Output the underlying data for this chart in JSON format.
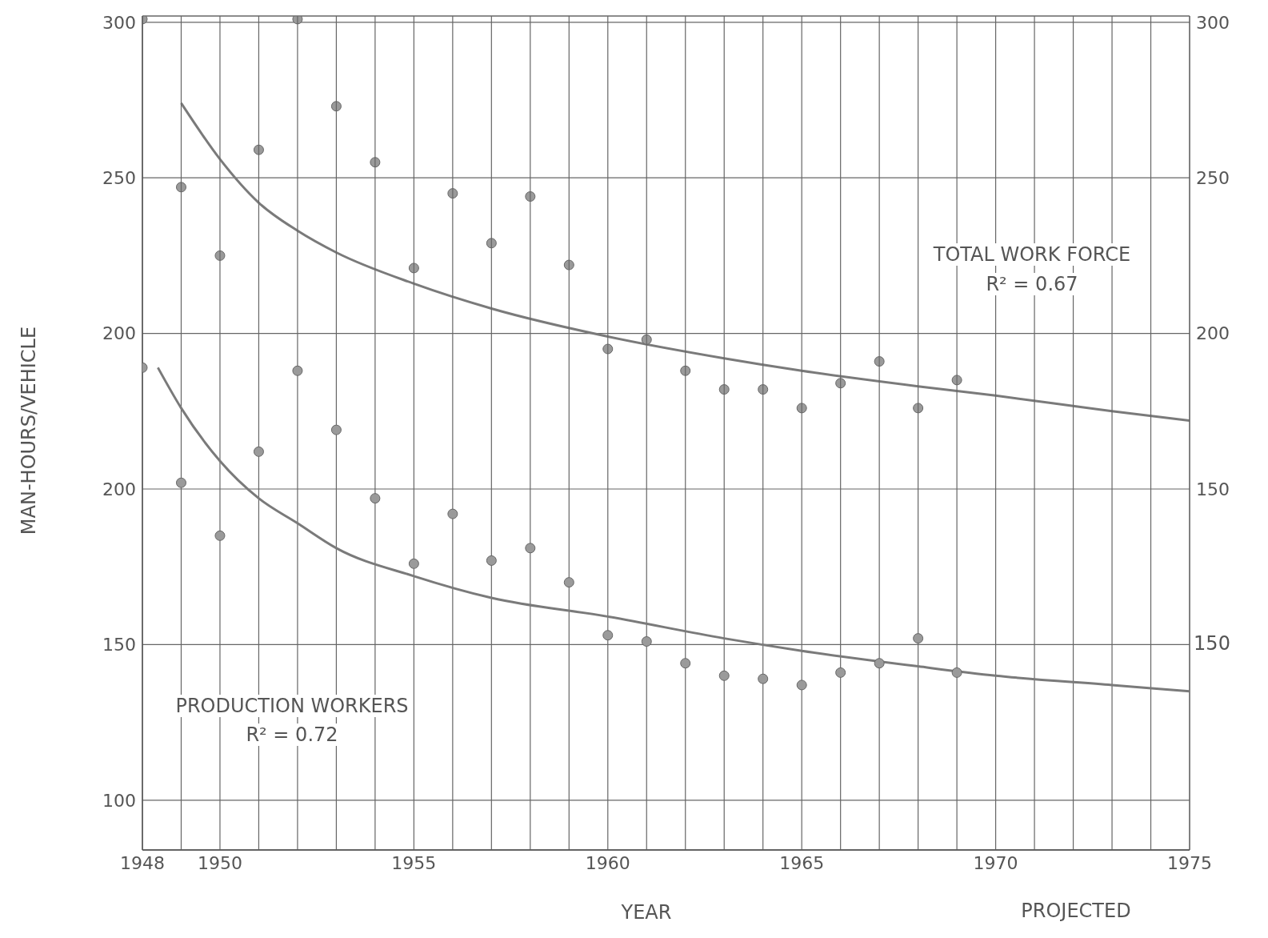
{
  "chart_data": [
    {
      "type": "scatter",
      "xlim": [
        1948,
        1975
      ],
      "ylim": [
        34,
        302
      ],
      "yticks": [
        300,
        250,
        200
      ],
      "y2lim": [
        34,
        302
      ],
      "y2ticks": [
        300,
        250,
        200,
        150
      ],
      "tick_labels": "y",
      "grid": "y",
      "line_style": "solid",
      "annotations": [
        "TOTAL WORK FORCE",
        "R² = 0.67"
      ],
      "series": [
        {
          "marker": "circle",
          "color": "#9a9a9a",
          "x": [
            1948,
            1949,
            1950,
            1951,
            1952,
            1953,
            1954,
            1955,
            1956,
            1957,
            1958,
            1959,
            1960,
            1961,
            1962,
            1963,
            1964,
            1965,
            1966,
            1967,
            1968,
            1969
          ],
          "values": [
            301,
            247,
            225,
            259,
            301,
            273,
            255,
            221,
            245,
            229,
            244,
            222,
            195,
            198,
            188,
            182,
            182,
            176,
            184,
            191,
            176,
            185
          ]
        },
        {
          "type": "line",
          "marker": "none",
          "color": "#7a7a7a",
          "x": [
            1949,
            1950,
            1951,
            1952,
            1953,
            1955,
            1957,
            1960,
            1963,
            1965,
            1968,
            1970,
            1973,
            1975
          ],
          "values": [
            274,
            256,
            242,
            233,
            226,
            216,
            208,
            199,
            192,
            188,
            183,
            180,
            175,
            172
          ]
        }
      ]
    },
    {
      "type": "scatter",
      "xlim": [
        1948,
        1975
      ],
      "xticks": [
        1948,
        {
          "value": 1949,
          "label": null
        },
        1950,
        {
          "value": 1951,
          "label": null
        },
        {
          "value": 1952,
          "label": null
        },
        {
          "value": 1953,
          "label": null
        },
        {
          "value": 1954,
          "label": null
        },
        1955,
        {
          "value": 1956,
          "label": null
        },
        {
          "value": 1957,
          "label": null
        },
        {
          "value": 1958,
          "label": null
        },
        {
          "value": 1959,
          "label": null
        },
        1960,
        {
          "value": 1961,
          "label": null
        },
        {
          "value": 1962,
          "label": null
        },
        {
          "value": 1963,
          "label": null
        },
        {
          "value": 1964,
          "label": null
        },
        1965,
        {
          "value": 1966,
          "label": null
        },
        {
          "value": 1967,
          "label": null
        },
        {
          "value": 1968,
          "label": null
        },
        {
          "value": 1969,
          "label": null
        },
        1970,
        {
          "value": 1971,
          "label": null
        },
        {
          "value": 1972,
          "label": null
        },
        {
          "value": 1973,
          "label": null
        },
        {
          "value": 1974,
          "label": null
        },
        1975
      ],
      "ylim": [
        84,
        352
      ],
      "yticks": [
        200,
        150,
        100
      ],
      "grid": true,
      "line_style": "solid",
      "xlabel": "YEAR",
      "ylabel": "MAN-HOURS/VEHICLE",
      "annotations": [
        "PRODUCTION WORKERS",
        "R² = 0.72",
        "PROJECTED",
        "150"
      ],
      "series": [
        {
          "marker": "circle",
          "color": "#9a9a9a",
          "x": [
            1948,
            1949,
            1950,
            1951,
            1952,
            1953,
            1954,
            1955,
            1956,
            1957,
            1958,
            1959,
            1960,
            1961,
            1962,
            1963,
            1964,
            1965,
            1966,
            1967,
            1968,
            1969
          ],
          "values": [
            239,
            202,
            185,
            212,
            238,
            219,
            197,
            176,
            192,
            177,
            181,
            170,
            153,
            151,
            144,
            140,
            139,
            137,
            141,
            144,
            152,
            141
          ]
        },
        {
          "type": "line",
          "marker": "none",
          "color": "#7a7a7a",
          "x": [
            1948.4,
            1949,
            1950,
            1951,
            1952,
            1953,
            1955,
            1957,
            1960,
            1963,
            1965,
            1968,
            1970,
            1973,
            1975
          ],
          "values": [
            239,
            226,
            209,
            197,
            189,
            181,
            172,
            165,
            159,
            152,
            148,
            143,
            140,
            137,
            135
          ]
        }
      ]
    }
  ]
}
